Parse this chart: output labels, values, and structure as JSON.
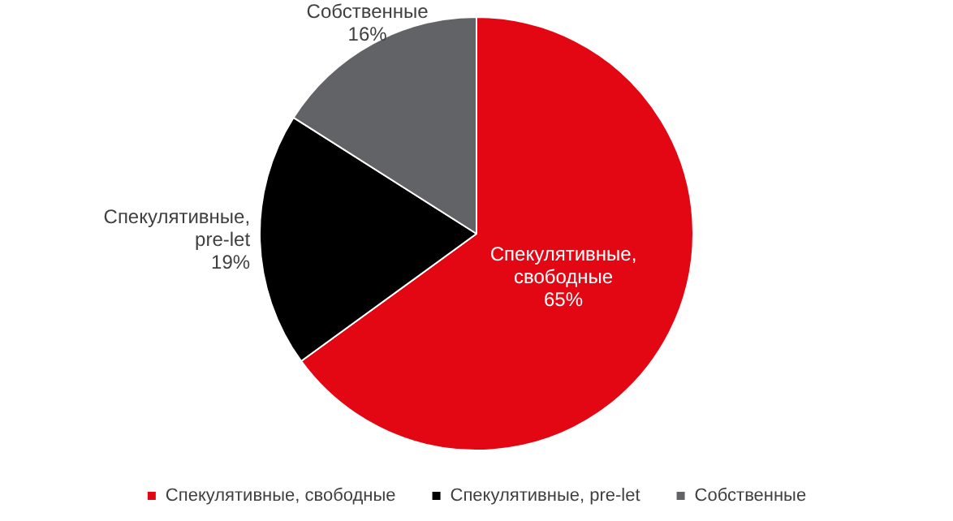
{
  "chart_data": {
    "type": "pie",
    "categories": [
      "Спекулятивные, свободные",
      "Спекулятивные, pre-let",
      "Собственные"
    ],
    "values": [
      65,
      19,
      16
    ],
    "colors": [
      "#e30613",
      "#000000",
      "#626366"
    ],
    "value_labels": [
      "65%",
      "19%",
      "16%"
    ],
    "legend": "bottom"
  }
}
